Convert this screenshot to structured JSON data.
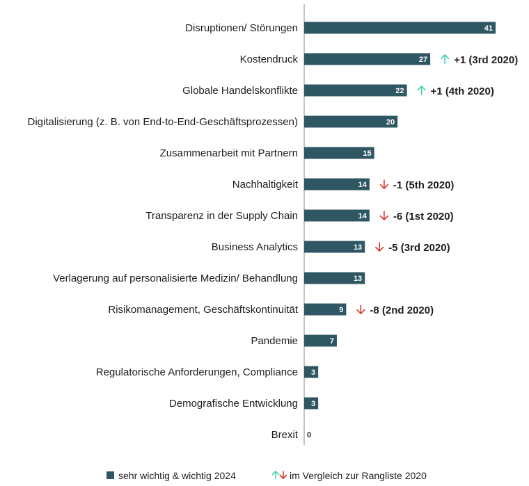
{
  "chart_data": {
    "type": "bar",
    "orientation": "horizontal",
    "categories": [
      "Disruptionen/ Störungen",
      "Kostendruck",
      "Globale Handelskonflikte",
      "Digitalisierung (z. B. von End-to-End-Geschäftsprozessen)",
      "Zusammenarbeit mit Partnern",
      "Nachhaltigkeit",
      "Transparenz in der Supply Chain",
      "Business Analytics",
      "Verlagerung auf personalisierte Medizin/ Behandlung",
      "Risikomanagement, Geschäftskontinuität",
      "Pandemie",
      "Regulatorische Anforderungen, Compliance",
      "Demografische Entwicklung",
      "Brexit"
    ],
    "series": [
      {
        "name": "sehr wichtig & wichtig 2024",
        "values": [
          41,
          27,
          22,
          20,
          15,
          14,
          14,
          13,
          13,
          9,
          7,
          3,
          3,
          0
        ]
      }
    ],
    "changes": [
      null,
      {
        "direction": "up",
        "text": "+1 (3rd 2020)"
      },
      {
        "direction": "up",
        "text": "+1 (4th 2020)"
      },
      null,
      null,
      {
        "direction": "down",
        "text": "-1 (5th 2020)"
      },
      {
        "direction": "down",
        "text": "-6 (1st 2020)"
      },
      {
        "direction": "down",
        "text": "-5 (3rd 2020)"
      },
      null,
      {
        "direction": "down",
        "text": "-8 (2nd 2020)"
      },
      null,
      null,
      null,
      null
    ],
    "xlim": [
      0,
      41
    ],
    "grid": false,
    "legend": {
      "position": "bottom-center",
      "bar_label": "sehr wichtig & wichtig 2024",
      "arrow_label": "im Vergleich zur Rangliste 2020"
    },
    "colors": {
      "bar": "#2f5763",
      "up": "#3fd1b0",
      "down": "#d9372b",
      "axis": "#8a8a8a",
      "text": "#1d1d1d"
    }
  }
}
